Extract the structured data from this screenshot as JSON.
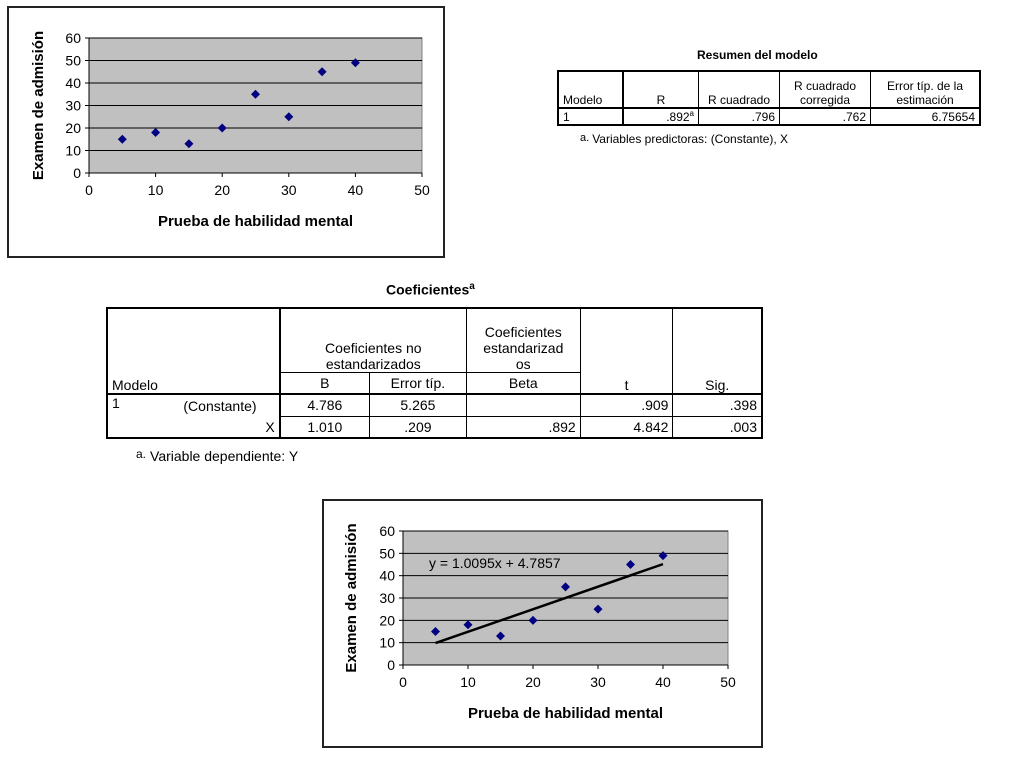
{
  "chart_data": [
    {
      "type": "scatter",
      "xlabel": "Prueba de habilidad mental",
      "ylabel": "Examen de admisión",
      "xlim": [
        0,
        50
      ],
      "ylim": [
        0,
        60
      ],
      "xticks": [
        "0",
        "10",
        "20",
        "30",
        "40",
        "50"
      ],
      "yticks": [
        "0",
        "10",
        "20",
        "30",
        "40",
        "50",
        "60"
      ],
      "grid": true,
      "marker_color": "#000080",
      "plot_bg": "#c0c0c0",
      "points": [
        [
          5,
          15
        ],
        [
          10,
          18
        ],
        [
          15,
          13
        ],
        [
          20,
          20
        ],
        [
          25,
          35
        ],
        [
          30,
          25
        ],
        [
          35,
          45
        ],
        [
          40,
          49
        ]
      ]
    },
    {
      "type": "scatter",
      "xlabel": "Prueba de habilidad mental",
      "ylabel": "Examen de admisión",
      "xlim": [
        0,
        50
      ],
      "ylim": [
        0,
        60
      ],
      "xticks": [
        "0",
        "10",
        "20",
        "30",
        "40",
        "50"
      ],
      "yticks": [
        "0",
        "10",
        "20",
        "30",
        "40",
        "50",
        "60"
      ],
      "grid": true,
      "marker_color": "#000080",
      "plot_bg": "#c0c0c0",
      "points": [
        [
          5,
          15
        ],
        [
          10,
          18
        ],
        [
          15,
          13
        ],
        [
          20,
          20
        ],
        [
          25,
          35
        ],
        [
          30,
          25
        ],
        [
          35,
          45
        ],
        [
          40,
          49
        ]
      ],
      "trendline": {
        "slope": 1.0095,
        "intercept": 4.7857,
        "x_range": [
          5,
          40
        ],
        "equation": "y = 1.0095x + 4.7857"
      }
    },
    {
      "type": "table",
      "title": "Resumen del modelo",
      "columns": [
        "Modelo",
        "R",
        "R cuadrado",
        "R cuadrado corregida",
        "Error típ. de la estimación"
      ],
      "rows": [
        [
          "1",
          ".892",
          ".796",
          ".762",
          "6.75654"
        ]
      ],
      "footnote": "Variables predictoras: (Constante), X"
    },
    {
      "type": "table",
      "title": "Coeficientes",
      "columns": [
        "Modelo",
        "",
        "B",
        "Error típ.",
        "Beta",
        "t",
        "Sig."
      ],
      "rows": [
        [
          "1",
          "(Constante)",
          "4.786",
          "5.265",
          "",
          ".909",
          ".398"
        ],
        [
          "",
          "X",
          "1.010",
          ".209",
          ".892",
          "4.842",
          ".003"
        ]
      ],
      "footnote": "Variable dependiente: Y"
    }
  ],
  "resumen": {
    "title": "Resumen del modelo",
    "h_modelo": "Modelo",
    "h_r": "R",
    "h_r2": "R cuadrado",
    "h_r2c_1": "R cuadrado",
    "h_r2c_2": "corregida",
    "h_err_1": "Error típ. de la",
    "h_err_2": "estimación",
    "row_modelo": "1",
    "row_r": ".892",
    "row_r_sup": "a",
    "row_r2": ".796",
    "row_r2c": ".762",
    "row_err": "6.75654",
    "foot_mark": "a.",
    "foot_text": "Variables predictoras: (Constante), X"
  },
  "coef": {
    "title": "Coeficientes",
    "title_sup": "a",
    "h_noest_1": "Coeficientes no",
    "h_noest_2": "estandarizados",
    "h_est_1": "Coeficientes",
    "h_est_2": "estandarizad",
    "h_est_3": "os",
    "h_modelo": "Modelo",
    "h_b": "B",
    "h_err": "Error típ.",
    "h_beta": "Beta",
    "h_t": "t",
    "h_sig": "Sig.",
    "r1_num": "1",
    "r1_name": "(Constante)",
    "r1_b": "4.786",
    "r1_err": "5.265",
    "r1_beta": "",
    "r1_t": ".909",
    "r1_sig": ".398",
    "r2_name": "X",
    "r2_b": "1.010",
    "r2_err": ".209",
    "r2_beta": ".892",
    "r2_t": "4.842",
    "r2_sig": ".003",
    "foot_mark": "a.",
    "foot_text": "Variable dependiente: Y"
  }
}
